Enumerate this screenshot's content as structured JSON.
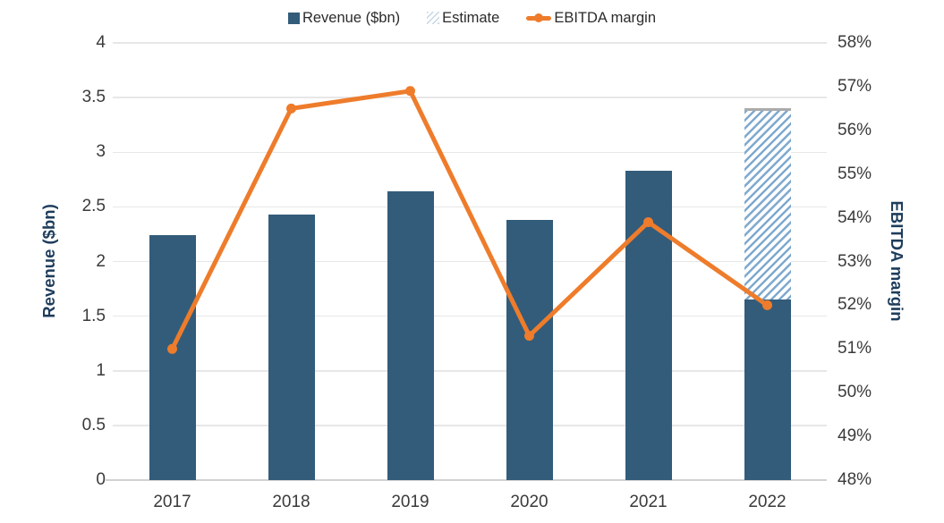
{
  "legend": {
    "position": "top"
  },
  "colors": {
    "bar": "#335C7A",
    "line": "#EE7C2B",
    "estimate_hatch": "#7FA9CE",
    "estimate_cap": "#ABABAB",
    "gridline": "#E7E7E7",
    "baseline": "#D2D2D2",
    "tick_text": "#3A3A3A",
    "axis_title_text": "#1E3D5C"
  },
  "chart_data": {
    "type": "combo-bar-line",
    "categories": [
      "2017",
      "2018",
      "2019",
      "2020",
      "2021",
      "2022"
    ],
    "series": [
      {
        "name": "Revenue ($bn)",
        "type": "bar",
        "axis": "left",
        "values": [
          2.24,
          2.43,
          2.64,
          2.38,
          2.83,
          1.65
        ]
      },
      {
        "name": "Estimate",
        "type": "bar",
        "axis": "left",
        "style": "hatched",
        "stacked_on": "Revenue ($bn)",
        "values": [
          null,
          null,
          null,
          null,
          null,
          1.75
        ],
        "stack_totals": [
          null,
          null,
          null,
          null,
          null,
          3.4
        ]
      },
      {
        "name": "EBITDA margin",
        "type": "line",
        "axis": "right",
        "unit": "%",
        "values": [
          51.0,
          56.5,
          56.9,
          51.3,
          53.9,
          52.0
        ]
      }
    ],
    "left_axis": {
      "label": "Revenue ($bn)",
      "min": 0,
      "max": 4,
      "step": 0.5
    },
    "right_axis": {
      "label": "EBITDA margin",
      "min": 48,
      "max": 58,
      "step": 1,
      "unit": "%"
    },
    "grid": true,
    "legend_position": "top"
  }
}
